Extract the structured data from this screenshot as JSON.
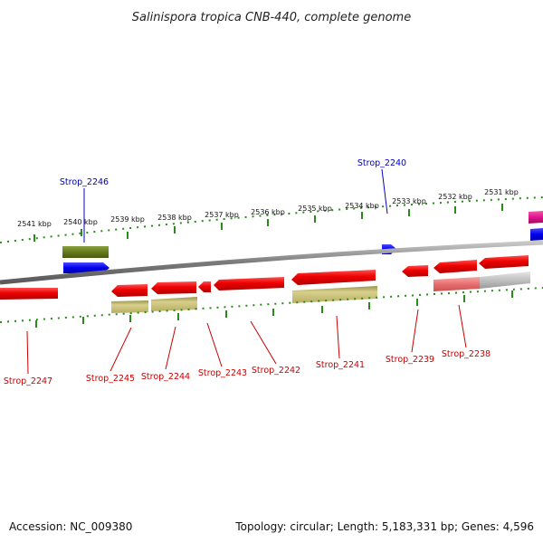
{
  "title": "Salinispora tropica CNB-440, complete genome",
  "footer": {
    "accession": "Accession: NC_009380",
    "summary": "Topology: circular; Length: 5,183,331 bp; Genes: 4,596"
  },
  "ticks": [
    "2541 kbp",
    "2540 kbp",
    "2539 kbp",
    "2538 kbp",
    "2537 kbp",
    "2536 kbp",
    "2535 kbp",
    "2534 kbp",
    "2533 kbp",
    "2532 kbp",
    "2531 kbp"
  ],
  "genes": {
    "Strop_2247": "Strop_2247",
    "Strop_2246": "Strop_2246",
    "Strop_2245": "Strop_2245",
    "Strop_2244": "Strop_2244",
    "Strop_2243": "Strop_2243",
    "Strop_2242": "Strop_2242",
    "Strop_2241": "Strop_2241",
    "Strop_2240": "Strop_2240",
    "Strop_2239": "Strop_2239",
    "Strop_2238": "Strop_2238"
  },
  "colors": {
    "cds": "#ee0000",
    "rna": "#0000ee",
    "olive": "#667a1e",
    "khaki": "#c8bf79",
    "pink": "#e86f6f",
    "gray": "#bbbbbb",
    "magenta": "#e0168c",
    "backbone": "#8a8a8a",
    "tick": "#2a8a1a"
  }
}
